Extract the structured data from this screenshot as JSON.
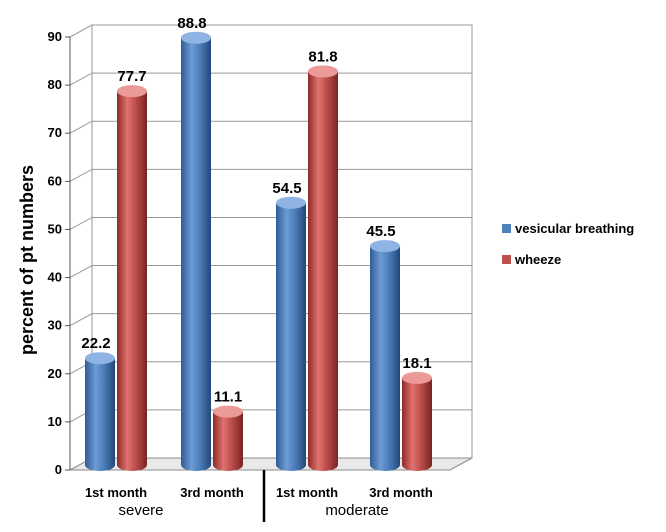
{
  "chart_data": {
    "type": "bar",
    "style": "3d-cylinder",
    "ylabel": "percent of pt numbers",
    "ylim": [
      0,
      90
    ],
    "yticks": [
      0,
      10,
      20,
      30,
      40,
      50,
      60,
      70,
      80,
      90
    ],
    "grid": true,
    "categories": [
      "1st month",
      "3rd month",
      "1st month",
      "3rd month"
    ],
    "groups": [
      {
        "label": "severe",
        "categories": [
          "1st month",
          "3rd month"
        ]
      },
      {
        "label": "moderate",
        "categories": [
          "1st month",
          "3rd month"
        ]
      }
    ],
    "series": [
      {
        "name": "vesicular breathing",
        "color": "#4f81bd",
        "values": [
          22.2,
          88.8,
          54.5,
          45.5
        ]
      },
      {
        "name": "wheeze",
        "color": "#c0504d",
        "values": [
          77.7,
          11.1,
          81.8,
          18.1
        ]
      }
    ],
    "data_labels": [
      [
        "22.2",
        "88.8",
        "54.5",
        "45.5"
      ],
      [
        "77.7",
        "11.1",
        "81.8",
        "18.1"
      ]
    ],
    "legend_position": "right"
  }
}
